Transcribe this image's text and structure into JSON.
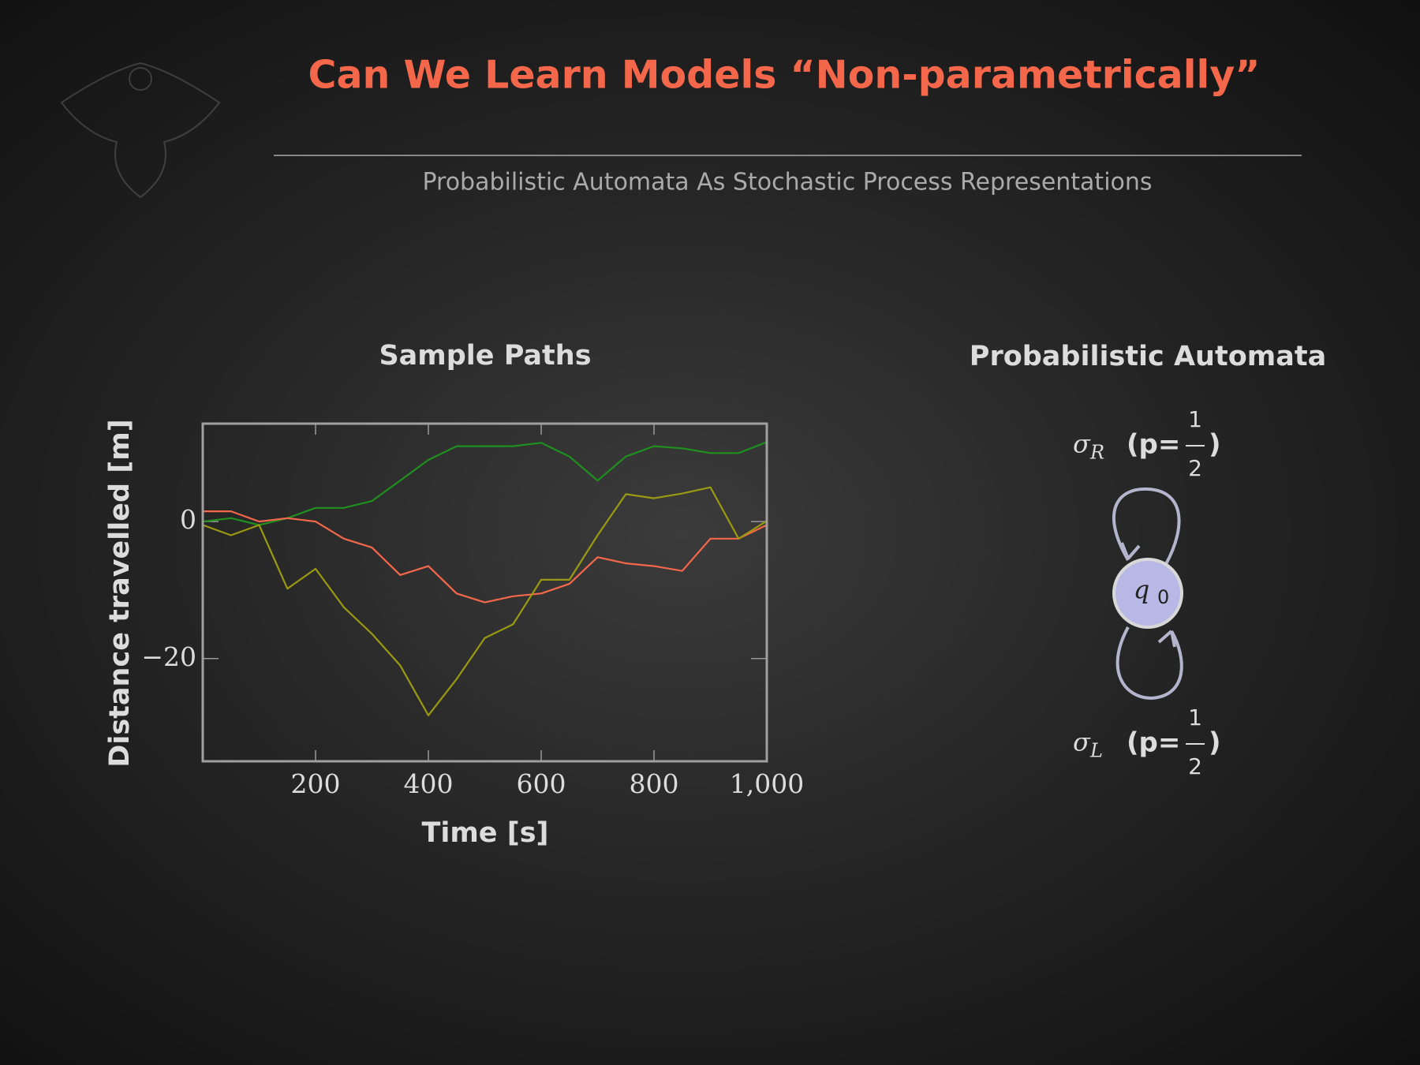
{
  "header": {
    "title": "Can We Learn Models “Non-parametrically”",
    "subtitle": "Probabilistic Automata As Stochastic Process Representations"
  },
  "chart_data": {
    "type": "line",
    "title": "Sample Paths",
    "xlabel": "Time [s]",
    "ylabel": "Distance travelled [m]",
    "x": [
      0,
      50,
      100,
      150,
      200,
      250,
      300,
      350,
      400,
      450,
      500,
      550,
      600,
      650,
      700,
      750,
      800,
      850,
      900,
      950,
      1000
    ],
    "series": [
      {
        "color": "#1f8f1f",
        "values": [
          0,
          0.5,
          -0.5,
          0.5,
          2,
          2,
          3,
          6,
          9,
          11,
          11,
          11,
          11.5,
          9.5,
          6,
          9.5,
          11,
          10.7,
          10,
          10,
          11.6
        ]
      },
      {
        "color": "#f5674a",
        "values": [
          1.5,
          1.5,
          0,
          0.5,
          0,
          -2.5,
          -3.8,
          -7.8,
          -6.5,
          -10.5,
          -11.8,
          -10.9,
          -10.5,
          -9.1,
          -5.2,
          -6.1,
          -6.5,
          -7.2,
          -2.5,
          -2.5,
          -0.5
        ]
      },
      {
        "color": "#9a9a12",
        "values": [
          -0.5,
          -2,
          -0.5,
          -9.8,
          -6.9,
          -12.5,
          -16.4,
          -21,
          -28.3,
          -23,
          -17,
          -15,
          -8.5,
          -8.5,
          -2,
          4,
          3.4,
          4.1,
          5,
          -2.5,
          0.1
        ]
      }
    ],
    "xlim": [
      0,
      1000
    ],
    "ylim": [
      -35,
      14.3
    ],
    "xticks": [
      200,
      400,
      600,
      800,
      {
        "value": 1000,
        "label": "1,000"
      }
    ],
    "yticks": [
      {
        "value": -20,
        "label": "−20"
      },
      0
    ]
  },
  "diagram": {
    "title": "Probabilistic Automata",
    "node": {
      "symbol": "q",
      "subscript": "0"
    },
    "edges": [
      {
        "symbol": "σ",
        "subscript": "R",
        "prefix": "(p=",
        "numerator": "1",
        "denominator": "2",
        "suffix": ")"
      },
      {
        "symbol": "σ",
        "subscript": "L",
        "prefix": "(p=",
        "numerator": "1",
        "denominator": "2",
        "suffix": ")"
      }
    ]
  }
}
